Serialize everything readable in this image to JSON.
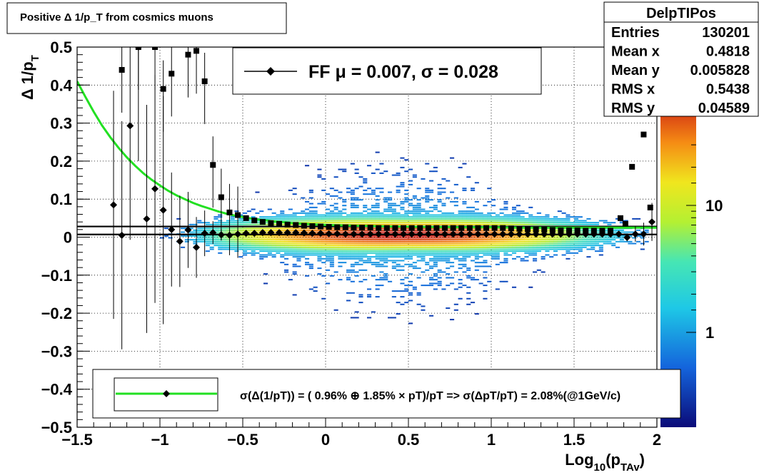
{
  "title": "Positive Δ 1/p_T from cosmics muons",
  "stats": {
    "name": "DelpTIPos",
    "rows": [
      {
        "label": "Entries",
        "value": "130201"
      },
      {
        "label": "Mean x",
        "value": "0.4818"
      },
      {
        "label": "Mean y",
        "value": "0.005828"
      },
      {
        "label": "RMS x",
        "value": "0.5438"
      },
      {
        "label": "RMS y",
        "value": "0.04589"
      }
    ]
  },
  "legend_top": {
    "text": "FF μ =  0.007, σ =   0.028"
  },
  "legend_bottom": {
    "text": "σ(Δ(1/pT)) = ( 0.96% ⊕  1.85% × pT)/pT => σ(ΔpT/pT) =  2.08%(@1GeV/c)"
  },
  "colorbar": {
    "tick_labels": [
      "1",
      "10"
    ],
    "scale": "log"
  },
  "chart_data": {
    "type": "heatmap",
    "xlabel": "Log_10(p_TAv)",
    "ylabel": "Δ 1/p_T",
    "xlim": [
      -1.5,
      2.0
    ],
    "ylim": [
      -0.5,
      0.5
    ],
    "x_ticks": [
      -1.5,
      -1,
      -0.5,
      0,
      0.5,
      1,
      1.5,
      2
    ],
    "x_tick_labels": [
      "−1.5",
      "−1",
      "−0.5",
      "0",
      "0.5",
      "1",
      "1.5",
      "2"
    ],
    "y_ticks": [
      -0.5,
      -0.4,
      -0.3,
      -0.2,
      -0.1,
      0,
      0.1,
      0.2,
      0.3,
      0.4,
      0.5
    ],
    "y_tick_labels": [
      "−0.5",
      "−0.4",
      "−0.3",
      "−0.2",
      "−0.1",
      "0",
      "0.1",
      "0.2",
      "0.3",
      "0.4",
      "0.5"
    ],
    "grid": true,
    "profile_mean": {
      "x": [
        -1.28,
        -1.23,
        -1.18,
        -1.13,
        -1.08,
        -1.03,
        -0.98,
        -0.93,
        -0.88,
        -0.83,
        -0.78,
        -0.73,
        -0.68,
        -0.63,
        -0.58,
        -0.53,
        -0.48,
        -0.43,
        -0.38,
        -0.33,
        -0.28,
        -0.23,
        -0.18,
        -0.13,
        -0.08,
        -0.03,
        0.02,
        0.07,
        0.12,
        0.17,
        0.22,
        0.27,
        0.32,
        0.37,
        0.42,
        0.47,
        0.52,
        0.57,
        0.62,
        0.67,
        0.72,
        0.77,
        0.82,
        0.87,
        0.92,
        0.97,
        1.02,
        1.07,
        1.12,
        1.17,
        1.22,
        1.27,
        1.32,
        1.37,
        1.42,
        1.47,
        1.52,
        1.57,
        1.62,
        1.67,
        1.72,
        1.77,
        1.82,
        1.87,
        1.92,
        1.97
      ],
      "y": [
        0.085,
        0.005,
        0.293,
        0.5,
        0.048,
        0.127,
        0.071,
        0.02,
        -0.011,
        0.019,
        -0.027,
        0.01,
        0.012,
        0.006,
        0.005,
        0.008,
        0.01,
        0.01,
        0.012,
        0.012,
        0.012,
        0.012,
        0.012,
        0.011,
        0.01,
        0.01,
        0.009,
        0.009,
        0.008,
        0.008,
        0.008,
        0.008,
        0.008,
        0.008,
        0.008,
        0.008,
        0.008,
        0.008,
        0.008,
        0.008,
        0.008,
        0.008,
        0.008,
        0.008,
        0.008,
        0.008,
        0.008,
        0.008,
        0.008,
        0.008,
        0.008,
        0.008,
        0.008,
        0.008,
        0.008,
        0.008,
        0.008,
        0.008,
        0.008,
        0.008,
        0.008,
        0.008,
        -0.001,
        0.008,
        0.008,
        0.04
      ],
      "err": [
        0.3,
        0.3,
        0.3,
        0.3,
        0.3,
        0.3,
        0.3,
        0.15,
        0.12,
        0.1,
        0.08,
        0.06,
        0.03,
        0.015,
        0.008,
        0.005,
        0.004,
        0.003,
        0.002,
        0.002,
        0.002,
        0.002,
        0.002,
        0.002,
        0.002,
        0.002,
        0.002,
        0.002,
        0.002,
        0.002,
        0.002,
        0.002,
        0.002,
        0.002,
        0.002,
        0.002,
        0.002,
        0.002,
        0.002,
        0.002,
        0.002,
        0.002,
        0.002,
        0.002,
        0.002,
        0.002,
        0.002,
        0.002,
        0.002,
        0.002,
        0.002,
        0.002,
        0.002,
        0.002,
        0.002,
        0.002,
        0.002,
        0.002,
        0.002,
        0.002,
        0.002,
        0.002,
        0.01,
        0.02,
        0.03,
        0.05
      ]
    },
    "profile_sigma": {
      "x": [
        -1.23,
        -1.13,
        -1.03,
        -0.98,
        -0.93,
        -0.83,
        -0.78,
        -0.73,
        -0.68,
        -0.63,
        -0.58,
        -0.53,
        -0.48,
        -0.43,
        -0.38,
        -0.33,
        -0.28,
        -0.23,
        -0.18,
        -0.13,
        -0.08,
        -0.03,
        0.02,
        0.07,
        0.12,
        0.17,
        0.22,
        0.27,
        0.32,
        0.37,
        0.42,
        0.47,
        0.52,
        0.57,
        0.62,
        0.67,
        0.72,
        0.77,
        0.82,
        0.87,
        0.92,
        0.97,
        1.02,
        1.07,
        1.12,
        1.17,
        1.22,
        1.27,
        1.32,
        1.37,
        1.42,
        1.47,
        1.52,
        1.57,
        1.62,
        1.67,
        1.72,
        1.78,
        1.81,
        1.85,
        1.89,
        1.92,
        1.96
      ],
      "y": [
        0.44,
        0.5,
        0.5,
        0.39,
        0.43,
        0.48,
        0.49,
        0.41,
        0.19,
        0.105,
        0.065,
        0.058,
        0.05,
        0.044,
        0.04,
        0.037,
        0.035,
        0.033,
        0.032,
        0.03,
        0.029,
        0.028,
        0.027,
        0.026,
        0.026,
        0.025,
        0.025,
        0.025,
        0.024,
        0.024,
        0.024,
        0.024,
        0.024,
        0.024,
        0.024,
        0.024,
        0.024,
        0.024,
        0.024,
        0.024,
        0.024,
        0.024,
        0.024,
        0.024,
        0.023,
        0.022,
        0.021,
        0.02,
        0.02,
        0.019,
        0.018,
        0.018,
        0.018,
        0.017,
        0.017,
        0.017,
        0.017,
        0.05,
        0.035,
        0.185,
        0.375,
        0.27,
        0.078
      ]
    },
    "fit_curve": {
      "x": [
        -1.5,
        -1.45,
        -1.4,
        -1.35,
        -1.3,
        -1.25,
        -1.2,
        -1.15,
        -1.1,
        -1.05,
        -1.0,
        -0.95,
        -0.9,
        -0.85,
        -0.8,
        -0.75,
        -0.7,
        -0.65,
        -0.6,
        -0.55,
        -0.5,
        -0.45,
        -0.4,
        -0.3,
        -0.2,
        -0.1,
        0.0,
        0.2,
        0.4,
        0.6,
        0.8,
        1.0,
        1.2,
        1.4,
        1.6,
        1.8,
        2.0
      ],
      "y": [
        0.41,
        0.369,
        0.33,
        0.294,
        0.263,
        0.235,
        0.21,
        0.188,
        0.168,
        0.151,
        0.136,
        0.122,
        0.11,
        0.1,
        0.09,
        0.082,
        0.075,
        0.068,
        0.062,
        0.057,
        0.053,
        0.049,
        0.046,
        0.041,
        0.037,
        0.034,
        0.032,
        0.03,
        0.028,
        0.027,
        0.026,
        0.026,
        0.025,
        0.025,
        0.025,
        0.025,
        0.025
      ]
    },
    "hlines": [
      0.007,
      0.028
    ]
  }
}
